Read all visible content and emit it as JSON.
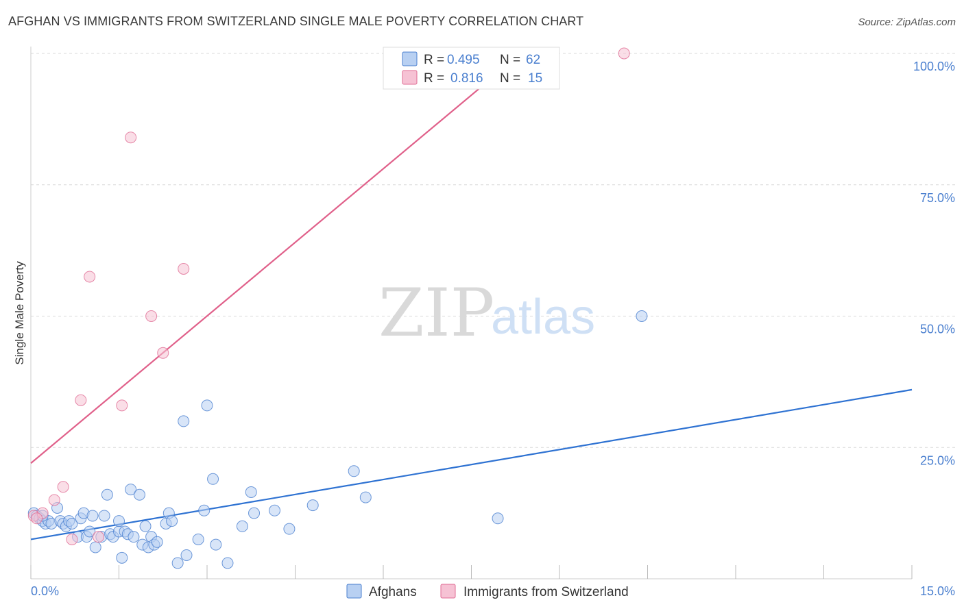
{
  "header": {
    "title": "AFGHAN VS IMMIGRANTS FROM SWITZERLAND SINGLE MALE POVERTY CORRELATION CHART",
    "source": "Source: ZipAtlas.com"
  },
  "watermark": {
    "zip": "ZIP",
    "atlas": "atlas"
  },
  "colors": {
    "blue": "#4a7fcf",
    "blue_fill": "#b8d0f2",
    "blue_line": "#2e72d2",
    "pink": "#e06b93",
    "pink_fill": "#f6c2d4",
    "pink_line": "#e0608a",
    "grid": "#d8d8d8"
  },
  "legend": {
    "rows": [
      {
        "r_label": "R =",
        "r_value": "0.495",
        "n_label": "N =",
        "n_value": "62"
      },
      {
        "r_label": "R =",
        "r_value": "0.816",
        "n_label": "N =",
        "n_value": "15"
      }
    ]
  },
  "chart_data": {
    "type": "scatter",
    "title": "AFGHAN VS IMMIGRANTS FROM SWITZERLAND SINGLE MALE POVERTY CORRELATION CHART",
    "xlabel": "",
    "ylabel": "Single Male Poverty",
    "xlim": [
      0,
      15
    ],
    "ylim": [
      0,
      100
    ],
    "x_tick_labels": [
      "0.0%",
      "15.0%"
    ],
    "y_ticks": [
      25,
      50,
      75,
      100
    ],
    "y_tick_labels": [
      "25.0%",
      "50.0%",
      "75.0%",
      "100.0%"
    ],
    "grid": true,
    "legend_position": "top-center",
    "series": [
      {
        "name": "Afghans",
        "color": "blue",
        "trend": {
          "x": [
            0,
            15
          ],
          "y": [
            7.5,
            36
          ]
        },
        "points": [
          [
            0.05,
            12.5
          ],
          [
            0.1,
            12
          ],
          [
            0.15,
            11.5
          ],
          [
            0.2,
            11
          ],
          [
            0.25,
            10.5
          ],
          [
            0.3,
            11
          ],
          [
            0.35,
            10.5
          ],
          [
            0.45,
            13.5
          ],
          [
            0.5,
            11
          ],
          [
            0.55,
            10.5
          ],
          [
            0.6,
            10
          ],
          [
            0.65,
            11
          ],
          [
            0.7,
            10.5
          ],
          [
            0.8,
            8
          ],
          [
            0.85,
            11.5
          ],
          [
            0.9,
            12.5
          ],
          [
            0.95,
            8
          ],
          [
            1.0,
            9
          ],
          [
            1.05,
            12
          ],
          [
            1.1,
            6
          ],
          [
            1.2,
            8
          ],
          [
            1.25,
            12
          ],
          [
            1.3,
            16
          ],
          [
            1.35,
            8.5
          ],
          [
            1.4,
            8
          ],
          [
            1.5,
            9
          ],
          [
            1.5,
            11
          ],
          [
            1.55,
            4
          ],
          [
            1.6,
            9
          ],
          [
            1.65,
            8.5
          ],
          [
            1.7,
            17
          ],
          [
            1.75,
            8
          ],
          [
            1.85,
            16
          ],
          [
            1.9,
            6.5
          ],
          [
            1.95,
            10
          ],
          [
            2.0,
            6
          ],
          [
            2.05,
            8
          ],
          [
            2.1,
            6.5
          ],
          [
            2.15,
            7
          ],
          [
            2.3,
            10.5
          ],
          [
            2.35,
            12.5
          ],
          [
            2.4,
            11
          ],
          [
            2.5,
            3
          ],
          [
            2.6,
            30
          ],
          [
            2.65,
            4.5
          ],
          [
            2.85,
            7.5
          ],
          [
            2.95,
            13
          ],
          [
            3.0,
            33
          ],
          [
            3.1,
            19
          ],
          [
            3.15,
            6.5
          ],
          [
            3.35,
            3
          ],
          [
            3.6,
            10
          ],
          [
            3.75,
            16.5
          ],
          [
            3.8,
            12.5
          ],
          [
            4.15,
            13
          ],
          [
            4.4,
            9.5
          ],
          [
            4.8,
            14
          ],
          [
            5.5,
            20.5
          ],
          [
            5.7,
            15.5
          ],
          [
            7.95,
            11.5
          ],
          [
            10.4,
            50
          ],
          [
            0.2,
            12
          ]
        ]
      },
      {
        "name": "Immigrants from Switzerland",
        "color": "pink",
        "trend": {
          "x": [
            0,
            8.35
          ],
          "y": [
            22,
            100
          ]
        },
        "points": [
          [
            0.05,
            12
          ],
          [
            0.2,
            12.5
          ],
          [
            0.4,
            15
          ],
          [
            0.55,
            17.5
          ],
          [
            0.7,
            7.5
          ],
          [
            0.85,
            34
          ],
          [
            1.0,
            57.5
          ],
          [
            1.15,
            8
          ],
          [
            1.55,
            33
          ],
          [
            1.7,
            84
          ],
          [
            2.05,
            50
          ],
          [
            2.25,
            43
          ],
          [
            2.6,
            59
          ],
          [
            10.1,
            100
          ],
          [
            0.1,
            11.5
          ]
        ]
      }
    ]
  },
  "bottom_legend": {
    "items": [
      {
        "label": "Afghans",
        "color": "blue"
      },
      {
        "label": "Immigrants from Switzerland",
        "color": "pink"
      }
    ]
  }
}
